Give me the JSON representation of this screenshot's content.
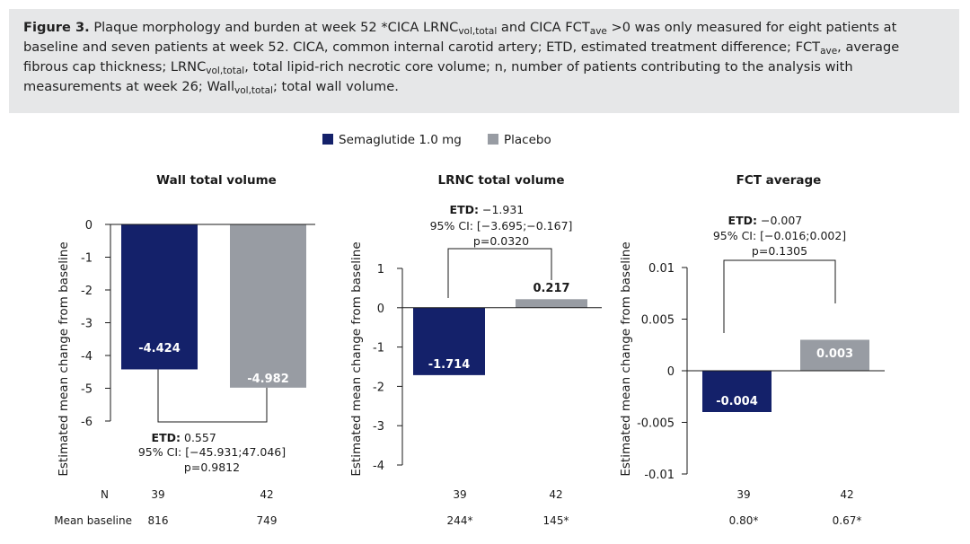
{
  "caption": {
    "label": "Figure 3.",
    "parts": [
      {
        "t": " Plaque morphology and burden at week 52 *CICA LRNC",
        "sub": false
      },
      {
        "t": "vol,total",
        "sub": true
      },
      {
        "t": " and CICA FCT",
        "sub": false
      },
      {
        "t": "ave",
        "sub": true
      },
      {
        "t": " >0 was only measured for eight patients at baseline and seven patients at week 52. CICA, common internal carotid artery; ETD, estimated treatment difference; FCT",
        "sub": false
      },
      {
        "t": "ave",
        "sub": true
      },
      {
        "t": ", average fibrous cap thickness; LRNC",
        "sub": false
      },
      {
        "t": "vol,total",
        "sub": true
      },
      {
        "t": ", total lipid-rich necrotic core volume; n, number of patients contributing to the analysis with measurements at week 26; Wall",
        "sub": false
      },
      {
        "t": "vol,total",
        "sub": true
      },
      {
        "t": "; total wall volume.",
        "sub": false
      }
    ]
  },
  "legend": {
    "items": [
      {
        "label": "Semaglutide 1.0 mg",
        "color": "#14216a"
      },
      {
        "label": "Placebo",
        "color": "#989ca3"
      }
    ]
  },
  "rows": {
    "n_label": "N",
    "baseline_label": "Mean baseline"
  },
  "chart_data": [
    {
      "type": "bar",
      "title": "Wall total volume",
      "ylabel": "Estimated mean change from baseline",
      "ylim": [
        -6,
        0
      ],
      "yticks": [
        0,
        -1,
        -2,
        -3,
        -4,
        -5,
        -6
      ],
      "ytick_labels": [
        "0",
        "-1",
        "-2",
        "-3",
        "-4",
        "-5",
        "-6"
      ],
      "categories": [
        "Semaglutide 1.0 mg",
        "Placebo"
      ],
      "values": [
        -4.424,
        -4.982
      ],
      "value_labels": [
        "-4.424",
        "-4.982"
      ],
      "etd": {
        "label": "ETD:",
        "value": "0.557",
        "ci": "95% CI: [−45.931;47.046]",
        "p": "p=0.9812",
        "position": "below"
      },
      "n": [
        "39",
        "42"
      ],
      "mean_baseline": [
        "816",
        "749"
      ]
    },
    {
      "type": "bar",
      "title": "LRNC total volume",
      "ylabel": "Estimated mean change from baseline",
      "ylim": [
        -4,
        1
      ],
      "yticks": [
        1,
        0,
        -1,
        -2,
        -3,
        -4
      ],
      "ytick_labels": [
        "1",
        "0",
        "-1",
        "-2",
        "-3",
        "-4"
      ],
      "categories": [
        "Semaglutide 1.0 mg",
        "Placebo"
      ],
      "values": [
        -1.714,
        0.217
      ],
      "value_labels": [
        "-1.714",
        "0.217"
      ],
      "etd": {
        "label": "ETD:",
        "value": "−1.931",
        "ci": "95% CI: [−3.695;−0.167]",
        "p": "p=0.0320",
        "position": "above"
      },
      "n": [
        "39",
        "42"
      ],
      "mean_baseline": [
        "244*",
        "145*"
      ]
    },
    {
      "type": "bar",
      "title": "FCT average",
      "ylabel": "Estimated mean change from baseline",
      "ylim": [
        -0.01,
        0.01
      ],
      "yticks": [
        0.01,
        0.005,
        0,
        -0.005,
        -0.01
      ],
      "ytick_labels": [
        "0.01",
        "0.005",
        "0",
        "-0.005",
        "-0.01"
      ],
      "categories": [
        "Semaglutide 1.0 mg",
        "Placebo"
      ],
      "values": [
        -0.004,
        0.003
      ],
      "value_labels": [
        "-0.004",
        "0.003"
      ],
      "etd": {
        "label": "ETD:",
        "value": "−0.007",
        "ci": "95% CI: [−0.016;0.002]",
        "p": "p=0.1305",
        "position": "above"
      },
      "n": [
        "39",
        "42"
      ],
      "mean_baseline": [
        "0.80*",
        "0.67*"
      ]
    }
  ]
}
